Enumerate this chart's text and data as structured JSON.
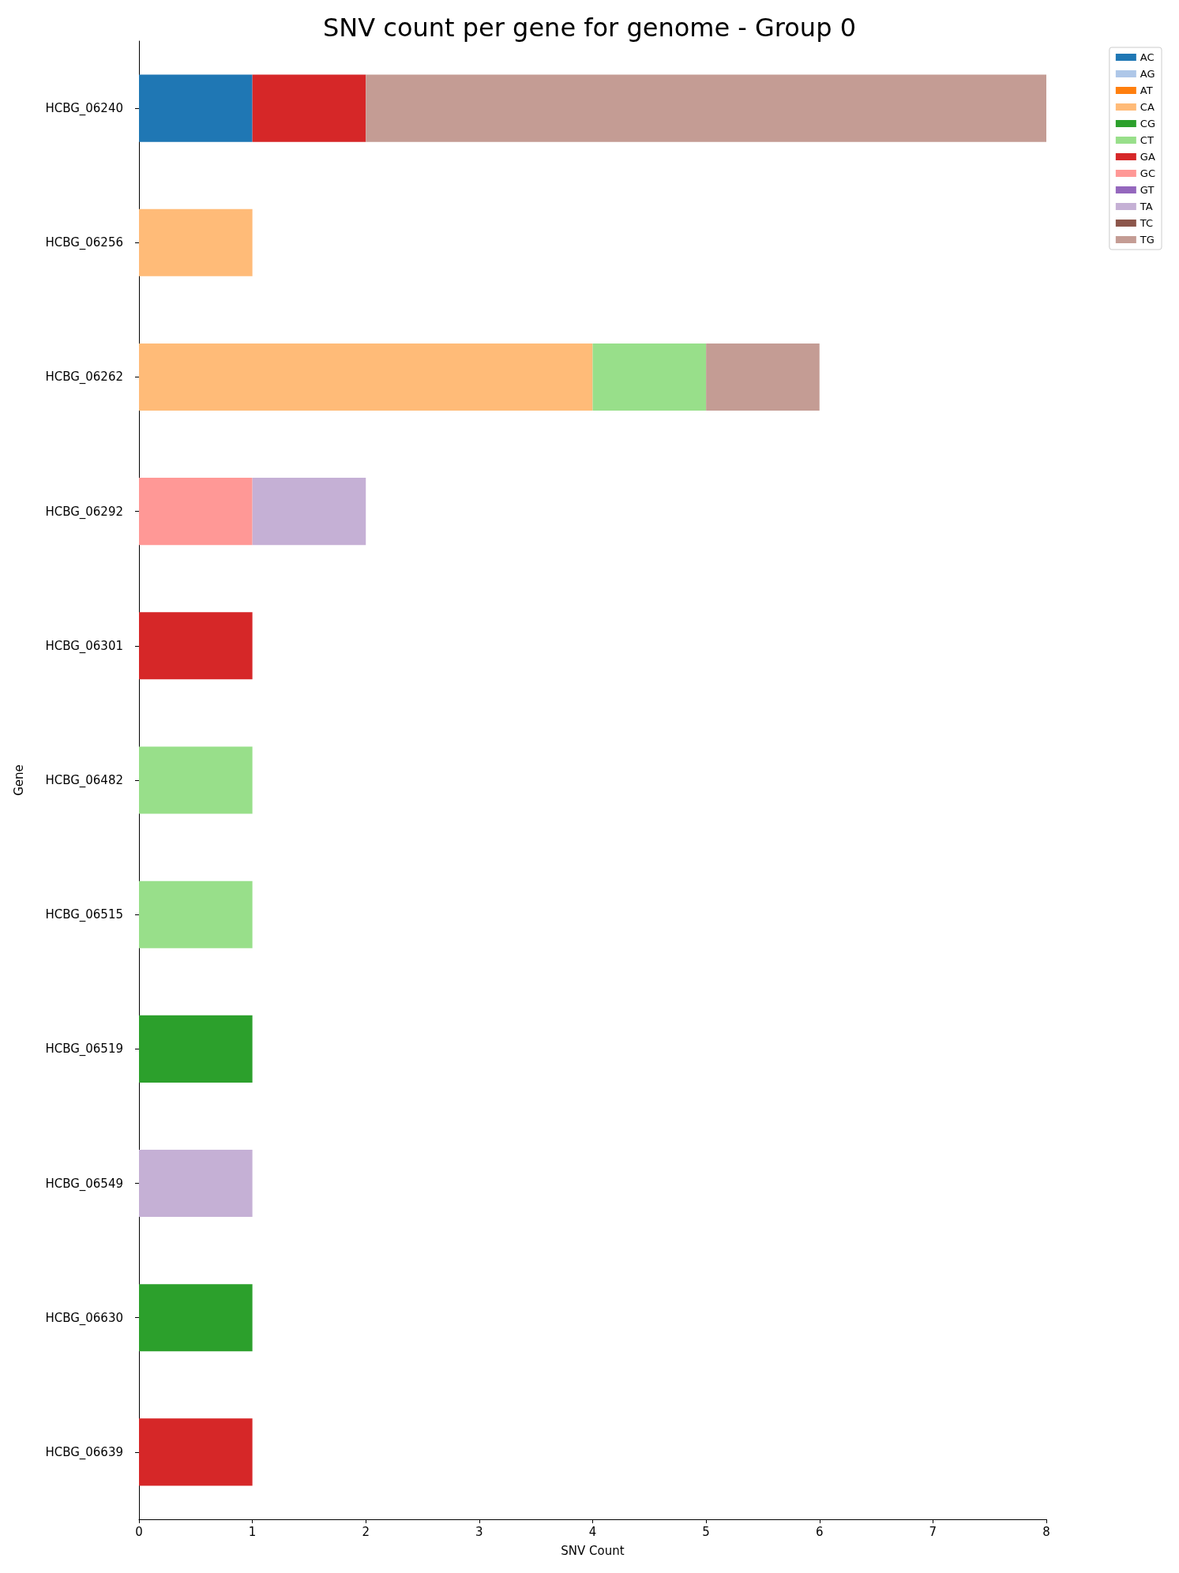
{
  "chart_data": {
    "type": "bar",
    "orientation": "horizontal",
    "stacked": true,
    "title": "SNV count per gene for genome - Group 0",
    "xlabel": "SNV Count",
    "ylabel": "Gene",
    "categories": [
      "HCBG_06240",
      "HCBG_06256",
      "HCBG_06262",
      "HCBG_06292",
      "HCBG_06301",
      "HCBG_06482",
      "HCBG_06515",
      "HCBG_06519",
      "HCBG_06549",
      "HCBG_06630",
      "HCBG_06639"
    ],
    "xlim": [
      0,
      8
    ],
    "xticks": [
      0,
      1,
      2,
      3,
      4,
      5,
      6,
      7,
      8
    ],
    "grid": false,
    "legend": "top right",
    "series": [
      {
        "name": "AC",
        "color": "#1f77b4",
        "values": [
          1,
          null,
          null,
          null,
          null,
          null,
          null,
          null,
          null,
          null,
          null
        ]
      },
      {
        "name": "AG",
        "color": "#aec7e8",
        "values": [
          null,
          null,
          null,
          null,
          null,
          null,
          null,
          null,
          null,
          null,
          null
        ]
      },
      {
        "name": "AT",
        "color": "#ff7f0e",
        "values": [
          null,
          null,
          null,
          null,
          null,
          null,
          null,
          null,
          null,
          null,
          null
        ]
      },
      {
        "name": "CA",
        "color": "#ffbb78",
        "values": [
          null,
          1,
          4,
          null,
          null,
          null,
          null,
          null,
          null,
          null,
          null
        ]
      },
      {
        "name": "CG",
        "color": "#2ca02c",
        "values": [
          null,
          null,
          null,
          null,
          null,
          null,
          null,
          1,
          null,
          1,
          null
        ]
      },
      {
        "name": "CT",
        "color": "#98df8a",
        "values": [
          null,
          null,
          1,
          null,
          null,
          1,
          1,
          null,
          null,
          null,
          null
        ]
      },
      {
        "name": "GA",
        "color": "#d62728",
        "values": [
          1,
          null,
          null,
          null,
          1,
          null,
          null,
          null,
          null,
          null,
          1
        ]
      },
      {
        "name": "GC",
        "color": "#ff9896",
        "values": [
          null,
          null,
          null,
          1,
          null,
          null,
          null,
          null,
          null,
          null,
          null
        ]
      },
      {
        "name": "GT",
        "color": "#9467bd",
        "values": [
          null,
          null,
          null,
          null,
          null,
          null,
          null,
          null,
          null,
          null,
          null
        ]
      },
      {
        "name": "TA",
        "color": "#c5b0d5",
        "values": [
          null,
          null,
          null,
          1,
          null,
          null,
          null,
          null,
          1,
          null,
          null
        ]
      },
      {
        "name": "TC",
        "color": "#8c564b",
        "values": [
          null,
          null,
          null,
          null,
          null,
          null,
          null,
          null,
          null,
          null,
          null
        ]
      },
      {
        "name": "TG",
        "color": "#c49c94",
        "values": [
          6,
          null,
          1,
          null,
          null,
          null,
          null,
          null,
          null,
          null,
          null
        ]
      }
    ]
  }
}
